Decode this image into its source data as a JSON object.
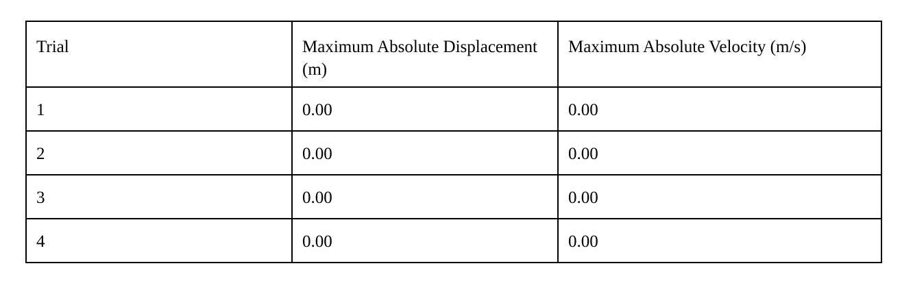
{
  "table": {
    "headers": [
      "Trial",
      "Maximum Absolute Displacement (m)",
      "Maximum Absolute Velocity (m/s)"
    ],
    "rows": [
      [
        "1",
        "0.00",
        "0.00"
      ],
      [
        "2",
        "0.00",
        "0.00"
      ],
      [
        "3",
        "0.00",
        "0.00"
      ],
      [
        "4",
        "0.00",
        "0.00"
      ]
    ]
  }
}
